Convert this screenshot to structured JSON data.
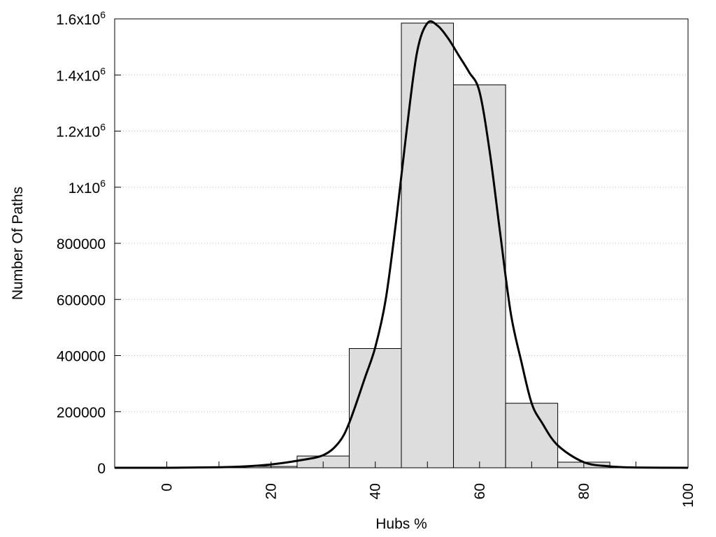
{
  "chart_data": {
    "type": "bar",
    "title": "",
    "xlabel": "Hubs %",
    "ylabel": "Number Of Paths",
    "xlim": [
      -10,
      100
    ],
    "ylim": [
      0,
      1600000
    ],
    "grid": {
      "y": true,
      "x": false,
      "style": "dotted"
    },
    "legend": "none",
    "bin_width": 10,
    "bins": [
      {
        "center": 0,
        "value": 2000
      },
      {
        "center": 10,
        "value": 2000
      },
      {
        "center": 20,
        "value": 5000
      },
      {
        "center": 30,
        "value": 42000
      },
      {
        "center": 40,
        "value": 425000
      },
      {
        "center": 50,
        "value": 1585000
      },
      {
        "center": 60,
        "value": 1365000
      },
      {
        "center": 70,
        "value": 230000
      },
      {
        "center": 80,
        "value": 20000
      },
      {
        "center": 90,
        "value": 2000
      }
    ],
    "curve": {
      "x": [
        -10,
        0,
        10,
        15,
        20,
        25,
        30,
        33,
        35,
        38,
        40,
        42,
        44,
        46,
        48,
        50,
        52,
        54,
        56,
        58,
        60,
        62,
        64,
        66,
        68,
        70,
        72,
        75,
        80,
        85,
        90,
        100
      ],
      "y": [
        0,
        0,
        2000,
        5000,
        12000,
        25000,
        45000,
        90000,
        160000,
        320000,
        430000,
        600000,
        880000,
        1200000,
        1480000,
        1585000,
        1575000,
        1530000,
        1470000,
        1410000,
        1340000,
        1120000,
        830000,
        550000,
        380000,
        230000,
        160000,
        80000,
        20000,
        5000,
        1000,
        0
      ]
    },
    "x_ticks": [
      {
        "value": 0,
        "label": "0"
      },
      {
        "value": 20,
        "label": "20"
      },
      {
        "value": 40,
        "label": "40"
      },
      {
        "value": 60,
        "label": "60"
      },
      {
        "value": 80,
        "label": "80"
      },
      {
        "value": 100,
        "label": "100"
      }
    ],
    "x_minor_ticks": [
      10,
      30,
      50,
      70,
      90
    ],
    "y_ticks": [
      {
        "value": 0,
        "label": "0",
        "sup": ""
      },
      {
        "value": 200000,
        "label": "200000",
        "sup": ""
      },
      {
        "value": 400000,
        "label": "400000",
        "sup": ""
      },
      {
        "value": 600000,
        "label": "600000",
        "sup": ""
      },
      {
        "value": 800000,
        "label": "800000",
        "sup": ""
      },
      {
        "value": 1000000,
        "label": "1x10",
        "sup": "6"
      },
      {
        "value": 1200000,
        "label": "1.2x10",
        "sup": "6"
      },
      {
        "value": 1400000,
        "label": "1.4x10",
        "sup": "6"
      },
      {
        "value": 1600000,
        "label": "1.6x10",
        "sup": "6"
      }
    ],
    "colors": {
      "bar_fill": "#dddddd",
      "bar_stroke": "#000000",
      "curve": "#000000",
      "grid": "#bbbbbb"
    }
  }
}
